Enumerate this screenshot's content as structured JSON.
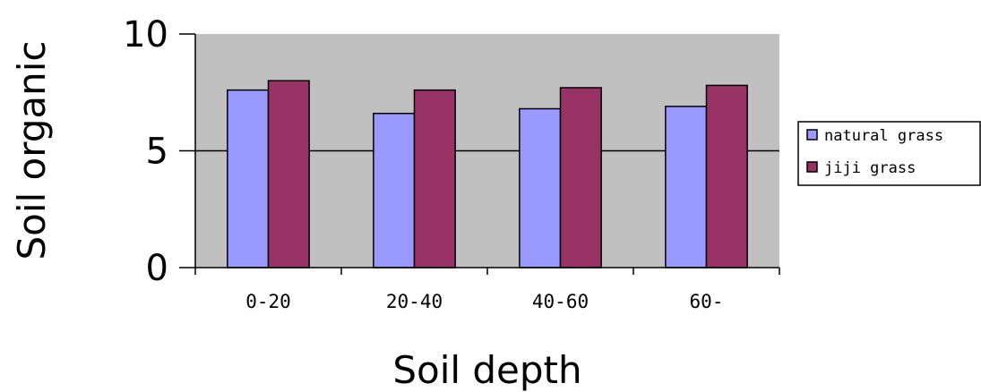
{
  "chart_data": {
    "type": "bar",
    "title": "",
    "xlabel": "Soil depth",
    "ylabel": "Soil organic",
    "categories": [
      "0-20",
      "20-40",
      "40-60",
      "60-"
    ],
    "series": [
      {
        "name": "natural grass",
        "values": [
          7.6,
          6.6,
          6.8,
          6.9
        ],
        "color": "#9999ff"
      },
      {
        "name": "jiji grass",
        "values": [
          8.0,
          7.6,
          7.7,
          7.8
        ],
        "color": "#993366"
      }
    ],
    "ylim": [
      0,
      10
    ],
    "yticks": [
      "0",
      "5",
      "10"
    ],
    "grid": true,
    "legend_position": "right",
    "plot_background": "#c0c0c0",
    "gridline_color": "#000000"
  }
}
